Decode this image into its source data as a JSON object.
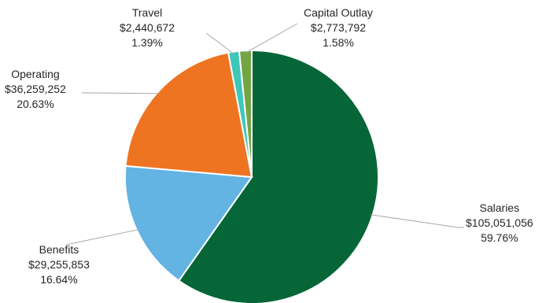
{
  "chart_data": {
    "type": "pie",
    "title": "",
    "legend": "none",
    "slices": [
      {
        "name": "Salaries",
        "amount": "$105,051,056",
        "percent_label": "59.76%",
        "value": 59.76,
        "color": "#066637"
      },
      {
        "name": "Benefits",
        "amount": "$29,255,853",
        "percent_label": "16.64%",
        "value": 16.64,
        "color": "#63b3e3"
      },
      {
        "name": "Operating",
        "amount": "$36,259,252",
        "percent_label": "20.63%",
        "value": 20.63,
        "color": "#ee7422"
      },
      {
        "name": "Travel",
        "amount": "$2,440,672",
        "percent_label": "1.39%",
        "value": 1.39,
        "color": "#3ec7b9"
      },
      {
        "name": "Capital Outlay",
        "amount": "$2,773,792",
        "percent_label": "1.58%",
        "value": 1.58,
        "color": "#73a544"
      }
    ]
  }
}
